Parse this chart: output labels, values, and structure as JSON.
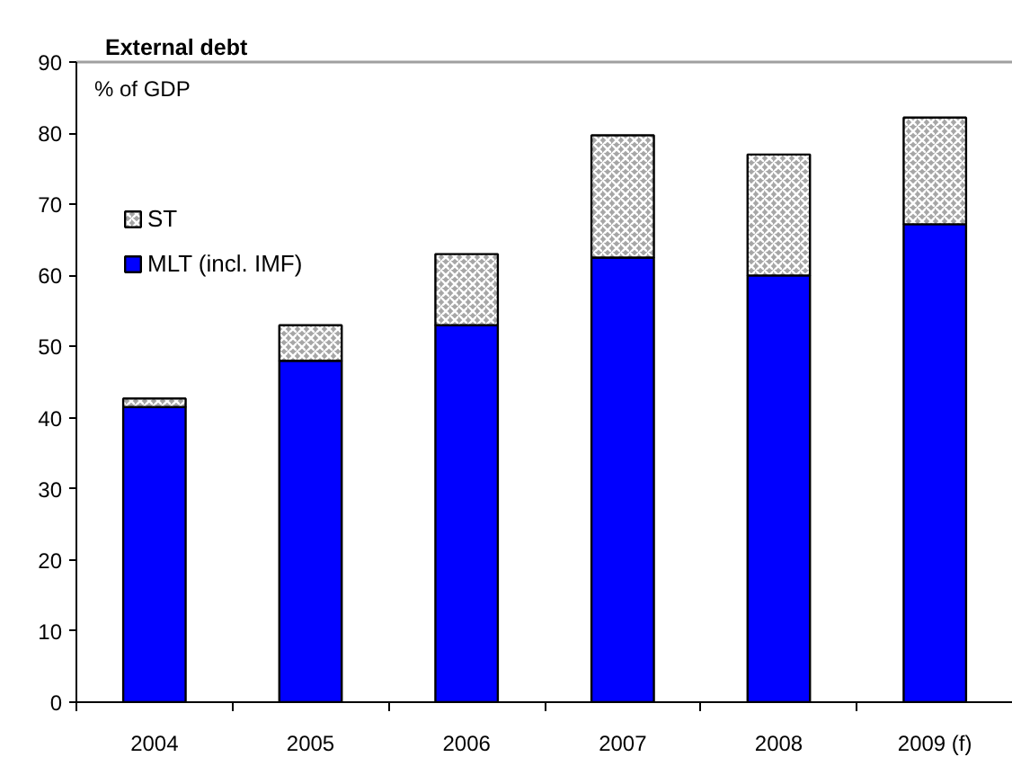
{
  "chart_data": {
    "type": "bar",
    "title": "External debt",
    "ylabel": "% of GDP",
    "categories": [
      "2004",
      "2005",
      "2006",
      "2007",
      "2008",
      "2009 (f)"
    ],
    "stacked": true,
    "series": [
      {
        "name": "MLT (incl. IMF)",
        "color": "#0000ff",
        "values": [
          41.5,
          48,
          53,
          62.5,
          60,
          67.2
        ]
      },
      {
        "name": "ST",
        "color": "#a6a6a6",
        "values": [
          1.2,
          5,
          10,
          17.2,
          17,
          15
        ]
      }
    ],
    "ylim": [
      0,
      90
    ],
    "yticks": [
      0,
      10,
      20,
      30,
      40,
      50,
      60,
      70,
      80,
      90
    ],
    "grid": false,
    "legend": "top left"
  }
}
